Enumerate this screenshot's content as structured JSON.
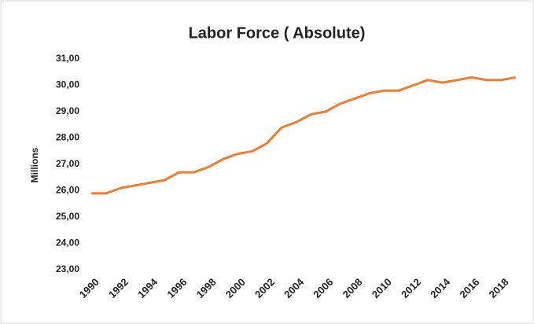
{
  "chart_data": {
    "type": "line",
    "title": "Labor Force ( Absolute)",
    "y_label": "Millions",
    "categories": [
      "1990",
      null,
      "1992",
      null,
      "1994",
      null,
      "1996",
      null,
      "1998",
      null,
      "2000",
      null,
      "2002",
      null,
      "2004",
      null,
      "2006",
      null,
      "2008",
      null,
      "2010",
      null,
      "2012",
      null,
      "2014",
      null,
      "2016",
      null,
      "2018",
      null
    ],
    "series": [
      {
        "name": "Labor Force",
        "color": "#ed7d31",
        "values": [
          25.9,
          25.9,
          26.1,
          26.2,
          26.3,
          26.4,
          26.7,
          26.7,
          26.9,
          27.2,
          27.4,
          27.5,
          27.8,
          28.4,
          28.6,
          28.9,
          29.0,
          29.3,
          29.5,
          29.7,
          29.8,
          29.8,
          30.0,
          30.2,
          30.1,
          30.2,
          30.3,
          30.2,
          30.2,
          30.3
        ]
      }
    ],
    "ylim": [
      23,
      31
    ],
    "yticks": [
      {
        "value": 23,
        "label": "23,00"
      },
      {
        "value": 24,
        "label": "24,00"
      },
      {
        "value": 25,
        "label": "25,00"
      },
      {
        "value": 26,
        "label": "26,00"
      },
      {
        "value": 27,
        "label": "27,00"
      },
      {
        "value": 28,
        "label": "28,00"
      },
      {
        "value": 29,
        "label": "29,00"
      },
      {
        "value": 30,
        "label": "30,00"
      },
      {
        "value": 31,
        "label": "31,00"
      }
    ],
    "grid": false
  }
}
